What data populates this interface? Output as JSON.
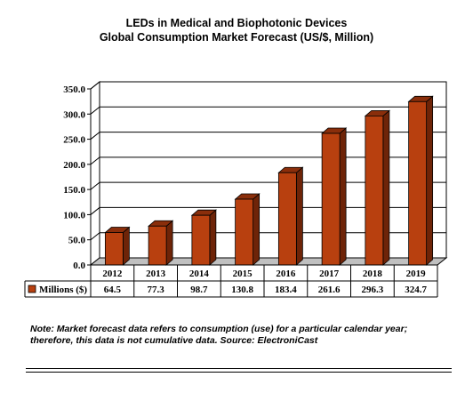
{
  "chart_data": {
    "type": "bar",
    "title": "LEDs in Medical and Biophotonic  Devices",
    "subtitle": "Global Consumption  Market Forecast (US/$, Million)",
    "categories": [
      "2012",
      "2013",
      "2014",
      "2015",
      "2016",
      "2017",
      "2018",
      "2019"
    ],
    "series": [
      {
        "name": "Millions ($)",
        "values": [
          64.5,
          77.3,
          98.7,
          130.8,
          183.4,
          261.6,
          296.3,
          324.7
        ],
        "color": "#B8400F"
      }
    ],
    "data_labels": [
      "64.5",
      "77.3",
      "98.7",
      "130.8",
      "183.4",
      "261.6",
      "296.3",
      "324.7"
    ],
    "ylim": [
      0,
      350
    ],
    "yticks": [
      "0.0",
      "50.0",
      "100.0",
      "150.0",
      "200.0",
      "250.0",
      "300.0",
      "350.0"
    ],
    "grid": true,
    "legend": "data-table",
    "bar_style": "3d",
    "colors": {
      "bar_front": "#B8400F",
      "bar_side": "#6E2408",
      "bar_top": "#8A2E0B",
      "plot_back": "#ffffff"
    }
  },
  "note": {
    "line1": "Note: Market forecast data refers to consumption (use) for a particular calendar year;",
    "line2": "therefore, this data is not cumulative data.  Source: ElectroniCast"
  }
}
